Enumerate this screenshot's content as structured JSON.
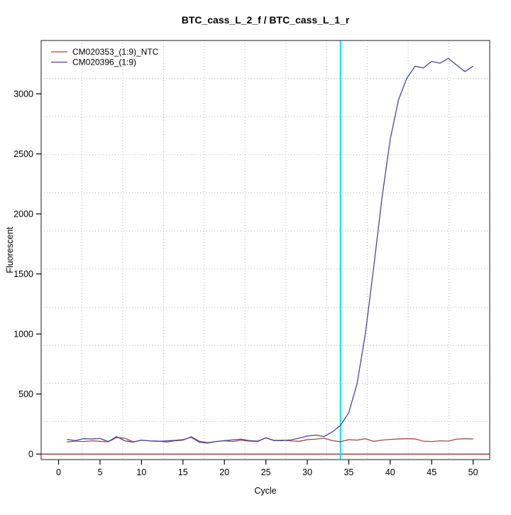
{
  "window": {
    "title": "BTC_cass_L_2_f / BTC_cass_L_1_r"
  },
  "chart_data": {
    "type": "line",
    "title": "BTC_cass_L_2_f / BTC_cass_L_1_r",
    "xlabel": "Cycle",
    "ylabel": "Fluorescent",
    "xlim": [
      -2.1,
      52.0
    ],
    "ylim": [
      -46,
      3444
    ],
    "x_ticks": [
      0,
      5,
      10,
      15,
      20,
      25,
      30,
      35,
      40,
      45,
      50
    ],
    "y_ticks": [
      0,
      500,
      1000,
      1500,
      2000,
      2500,
      3000
    ],
    "grid": {
      "style": "dotted",
      "color": "#b3b3b3",
      "x_divisions": 11,
      "y_divisions": 11
    },
    "box_color": "#444444",
    "threshold_line": {
      "y": 0,
      "color": "#8b2222"
    },
    "marker_line": {
      "x": 34,
      "color": "#00e6e6"
    },
    "legend_position": "top-left",
    "x_start": 1,
    "series": [
      {
        "name": "CM020353_(1:9)_NTC",
        "color": "#a84848",
        "values": [
          100,
          108,
          104,
          110,
          106,
          102,
          138,
          132,
          102,
          115,
          110,
          108,
          100,
          110,
          116,
          144,
          106,
          95,
          105,
          110,
          104,
          115,
          108,
          104,
          136,
          112,
          116,
          110,
          106,
          120,
          124,
          132,
          112,
          103,
          120,
          116,
          128,
          106,
          116,
          122,
          126,
          128,
          126,
          108,
          104,
          110,
          108,
          124,
          128,
          126
        ]
      },
      {
        "name": "CM020396_(1:9)",
        "color": "#4646a0",
        "values": [
          122,
          112,
          128,
          126,
          130,
          104,
          146,
          110,
          100,
          116,
          110,
          106,
          110,
          114,
          120,
          140,
          98,
          92,
          104,
          112,
          118,
          124,
          112,
          108,
          134,
          114,
          112,
          118,
          132,
          150,
          158,
          146,
          184,
          238,
          345,
          585,
          1000,
          1550,
          2130,
          2620,
          2950,
          3130,
          3230,
          3215,
          3270,
          3255,
          3295,
          3240,
          3185,
          3230
        ]
      }
    ]
  }
}
